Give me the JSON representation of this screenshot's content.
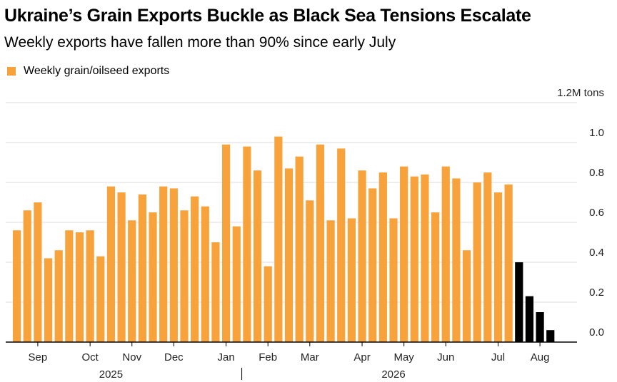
{
  "title": "Ukraine’s Grain Exports Buckle as Black Sea Tensions Escalate",
  "subtitle": "Weekly exports have fallen more than 90% since early July",
  "colors": {
    "series": "#f7a23b",
    "highlight": "#000000",
    "grid": "#dddddd"
  },
  "chart_data": {
    "type": "bar",
    "title": "Ukraine’s Grain Exports Buckle as Black Sea Tensions Escalate",
    "subtitle": "Weekly exports have fallen more than 90% since early July",
    "ylabel": "",
    "y_unit": "1.2M tons",
    "ylim": [
      0,
      1.2
    ],
    "y_ticks": [
      0.0,
      0.2,
      0.4,
      0.6,
      0.8,
      1.0
    ],
    "y_tick_labels": [
      "0.0",
      "0.2",
      "0.4",
      "0.6",
      "0.8",
      "1.0"
    ],
    "y_axis_side": "right",
    "grid": true,
    "legend": {
      "placement": "top-left",
      "entries": [
        "Weekly grain/oilseed exports"
      ]
    },
    "series": [
      {
        "name": "Weekly grain/oilseed exports",
        "values": [
          0.56,
          0.66,
          0.7,
          0.42,
          0.46,
          0.56,
          0.55,
          0.56,
          0.43,
          0.78,
          0.75,
          0.61,
          0.74,
          0.65,
          0.78,
          0.77,
          0.66,
          0.73,
          0.68,
          0.5,
          0.99,
          0.58,
          0.98,
          0.86,
          0.38,
          1.03,
          0.87,
          0.93,
          0.71,
          0.99,
          0.61,
          0.97,
          0.62,
          0.86,
          0.77,
          0.85,
          0.62,
          0.88,
          0.83,
          0.84,
          0.65,
          0.88,
          0.82,
          0.46,
          0.8,
          0.85,
          0.75,
          0.79,
          0.4,
          0.23,
          0.15,
          0.06
        ],
        "highlight_from_index": 48
      }
    ],
    "x_ticks": [
      {
        "label": "Sep",
        "index": 2
      },
      {
        "label": "Oct",
        "index": 7
      },
      {
        "label": "Nov",
        "index": 11
      },
      {
        "label": "Dec",
        "index": 15
      },
      {
        "label": "Jan",
        "index": 20
      },
      {
        "label": "Feb",
        "index": 24
      },
      {
        "label": "Mar",
        "index": 28
      },
      {
        "label": "Apr",
        "index": 33
      },
      {
        "label": "May",
        "index": 37
      },
      {
        "label": "Jun",
        "index": 41
      },
      {
        "label": "Jul",
        "index": 46
      },
      {
        "label": "Aug",
        "index": 50
      }
    ],
    "year_labels": [
      {
        "label": "2025",
        "index": 9
      },
      {
        "label": "2026",
        "index": 36
      }
    ],
    "year_divider_after_index": 21
  }
}
